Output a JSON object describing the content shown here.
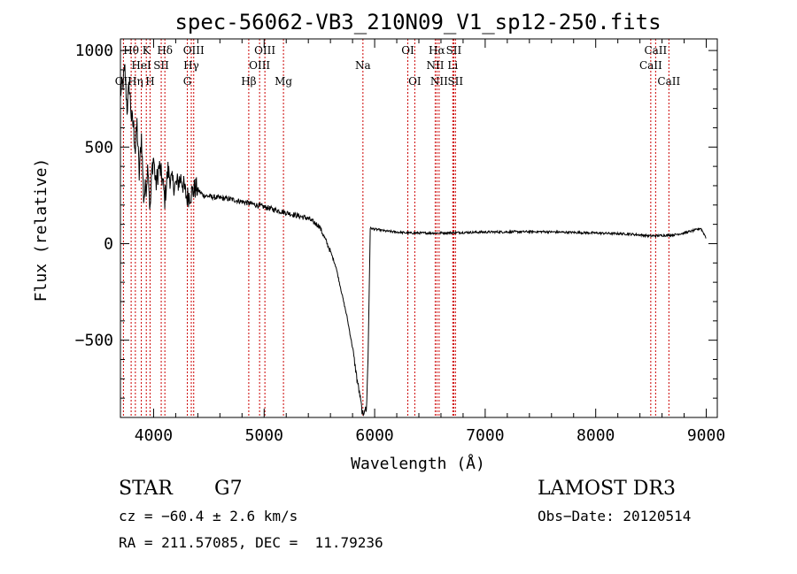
{
  "chart_data": {
    "type": "line",
    "title": "spec-56062-VB3_210N09_V1_sp12-250.fits",
    "xlabel": "Wavelength (Å)",
    "ylabel": "Flux (relative)",
    "xlim": [
      3700,
      9100
    ],
    "ylim": [
      -900,
      1060
    ],
    "xticks": [
      4000,
      5000,
      6000,
      7000,
      8000,
      9000
    ],
    "xtick_labels": [
      "4000",
      "5000",
      "6000",
      "7000",
      "8000",
      "9000"
    ],
    "yticks": [
      -500,
      0,
      500,
      1000
    ],
    "ytick_labels": [
      "−500",
      "0",
      "500",
      "1000"
    ],
    "series": [
      {
        "name": "flux",
        "x": [
          3700,
          3720,
          3740,
          3760,
          3780,
          3800,
          3820,
          3835,
          3850,
          3870,
          3890,
          3910,
          3933,
          3950,
          3968,
          3985,
          4000,
          4020,
          4050,
          4080,
          4101,
          4130,
          4160,
          4200,
          4250,
          4300,
          4340,
          4380,
          4450,
          4550,
          4700,
          4861,
          5000,
          5200,
          5400,
          5500,
          5600,
          5650,
          5700,
          5750,
          5800,
          5840,
          5870,
          5890,
          5895,
          5910,
          5925,
          5940,
          5960,
          6000,
          6100,
          6300,
          6563,
          7000,
          7500,
          8000,
          8300,
          8500,
          8700,
          8800,
          8900,
          8950,
          9000
        ],
        "y": [
          780,
          820,
          900,
          700,
          820,
          650,
          600,
          480,
          620,
          350,
          560,
          240,
          300,
          420,
          160,
          380,
          450,
          300,
          400,
          330,
          230,
          380,
          320,
          300,
          340,
          240,
          260,
          290,
          250,
          240,
          230,
          210,
          190,
          160,
          130,
          90,
          -40,
          -120,
          -250,
          -380,
          -540,
          -700,
          -800,
          -880,
          -890,
          -850,
          -870,
          -600,
          80,
          75,
          65,
          55,
          55,
          60,
          62,
          55,
          50,
          40,
          45,
          55,
          70,
          80,
          30
        ]
      }
    ],
    "lines": [
      {
        "name": "OII",
        "wavelength": 3727,
        "row": 2
      },
      {
        "name": "Hθ",
        "wavelength": 3797,
        "row": 0
      },
      {
        "name": "Hη",
        "wavelength": 3835,
        "row": 2
      },
      {
        "name": "HeI",
        "wavelength": 3889,
        "row": 1
      },
      {
        "name": "K",
        "wavelength": 3934,
        "row": 0
      },
      {
        "name": "H",
        "wavelength": 3968,
        "row": 2
      },
      {
        "name": "SII",
        "wavelength": 4069,
        "row": 1
      },
      {
        "name": "Hδ",
        "wavelength": 4102,
        "row": 0
      },
      {
        "name": "G",
        "wavelength": 4305,
        "row": 2
      },
      {
        "name": "Hγ",
        "wavelength": 4341,
        "row": 1
      },
      {
        "name": "OIII",
        "wavelength": 4363,
        "row": 0
      },
      {
        "name": "Hβ",
        "wavelength": 4861,
        "row": 2
      },
      {
        "name": "OIII",
        "wavelength": 4959,
        "row": 1
      },
      {
        "name": "OIII",
        "wavelength": 5007,
        "row": 0
      },
      {
        "name": "Mg",
        "wavelength": 5175,
        "row": 2
      },
      {
        "name": "Na",
        "wavelength": 5894,
        "row": 1
      },
      {
        "name": "OI",
        "wavelength": 6300,
        "row": 0
      },
      {
        "name": "OI",
        "wavelength": 6363,
        "row": 2
      },
      {
        "name": "NII",
        "wavelength": 6548,
        "row": 1
      },
      {
        "name": "Hα",
        "wavelength": 6563,
        "row": 0
      },
      {
        "name": "NII",
        "wavelength": 6583,
        "row": 2
      },
      {
        "name": "Li",
        "wavelength": 6707,
        "row": 1
      },
      {
        "name": "SII",
        "wavelength": 6716,
        "row": 0
      },
      {
        "name": "SII",
        "wavelength": 6731,
        "row": 2
      },
      {
        "name": "CaII",
        "wavelength": 8498,
        "row": 1
      },
      {
        "name": "CaII",
        "wavelength": 8542,
        "row": 0
      },
      {
        "name": "CaII",
        "wavelength": 8662,
        "row": 2
      }
    ],
    "line_color": "#cc0000"
  },
  "info": {
    "object_class": "STAR",
    "subclass": "G7",
    "survey": "LAMOST DR3",
    "velocity": "cz = −60.4 ± 2.6 km/s",
    "obs_date": "Obs−Date: 20120514",
    "coords": "RA = 211.57085, DEC =  11.79236"
  }
}
